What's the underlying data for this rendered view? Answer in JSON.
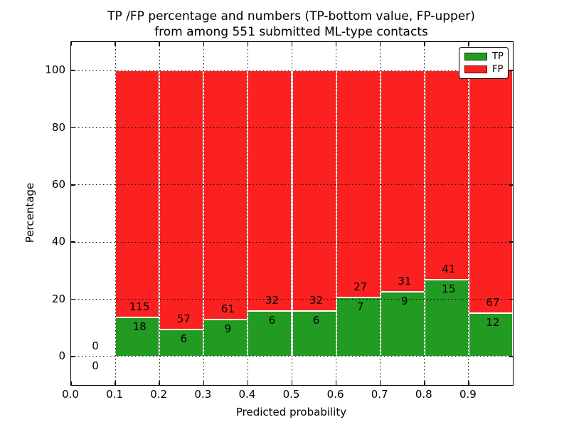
{
  "figure": {
    "title_line1": "TP /FP percentage and numbers (TP-bottom value, FP-upper)",
    "title_line2": "from among 551 submitted ML-type contacts",
    "x_axis_label": "Predicted probability",
    "y_axis_label": "Percentage"
  },
  "legend": {
    "items": [
      {
        "label": "TP",
        "color": "#229b22"
      },
      {
        "label": "FP",
        "color": "#fc2121"
      }
    ]
  },
  "chart_data": {
    "type": "bar",
    "stacked": true,
    "normalized": "each bin scaled to 100%, green TP share on bottom, red FP share on top",
    "title": "TP /FP percentage and numbers (TP-bottom value, FP-upper) from among 551 submitted ML-type contacts",
    "xlabel": "Predicted probability",
    "ylabel": "Percentage",
    "xlim": [
      0.0,
      1.0
    ],
    "ylim": [
      -10,
      110
    ],
    "grid": "dotted black, drawn above bars",
    "legend_position": "upper right",
    "total_contacts": 551,
    "series_colors": {
      "tp": "#229b22",
      "fp": "#fc2121"
    },
    "x_ticks": [
      {
        "v": 0.0,
        "label": "0.0"
      },
      {
        "v": 0.1,
        "label": "0.1"
      },
      {
        "v": 0.2,
        "label": "0.2"
      },
      {
        "v": 0.3,
        "label": "0.3"
      },
      {
        "v": 0.4,
        "label": "0.4"
      },
      {
        "v": 0.5,
        "label": "0.5"
      },
      {
        "v": 0.6,
        "label": "0.6"
      },
      {
        "v": 0.7,
        "label": "0.7"
      },
      {
        "v": 0.8,
        "label": "0.8"
      },
      {
        "v": 0.9,
        "label": "0.9"
      }
    ],
    "y_ticks": [
      {
        "v": 0,
        "label": "0"
      },
      {
        "v": 20,
        "label": "20"
      },
      {
        "v": 40,
        "label": "40"
      },
      {
        "v": 60,
        "label": "60"
      },
      {
        "v": 80,
        "label": "80"
      },
      {
        "v": 100,
        "label": "100"
      }
    ],
    "bins": [
      {
        "x0": 0.0,
        "x1": 0.1,
        "tp": 0,
        "fp": 0
      },
      {
        "x0": 0.1,
        "x1": 0.2,
        "tp": 18,
        "fp": 115
      },
      {
        "x0": 0.2,
        "x1": 0.3,
        "tp": 6,
        "fp": 57
      },
      {
        "x0": 0.3,
        "x1": 0.4,
        "tp": 9,
        "fp": 61
      },
      {
        "x0": 0.4,
        "x1": 0.5,
        "tp": 6,
        "fp": 32
      },
      {
        "x0": 0.5,
        "x1": 0.6,
        "tp": 6,
        "fp": 32
      },
      {
        "x0": 0.6,
        "x1": 0.7,
        "tp": 7,
        "fp": 27
      },
      {
        "x0": 0.7,
        "x1": 0.8,
        "tp": 9,
        "fp": 31
      },
      {
        "x0": 0.8,
        "x1": 0.9,
        "tp": 15,
        "fp": 41
      },
      {
        "x0": 0.9,
        "x1": 1.0,
        "tp": 12,
        "fp": 67
      }
    ]
  }
}
